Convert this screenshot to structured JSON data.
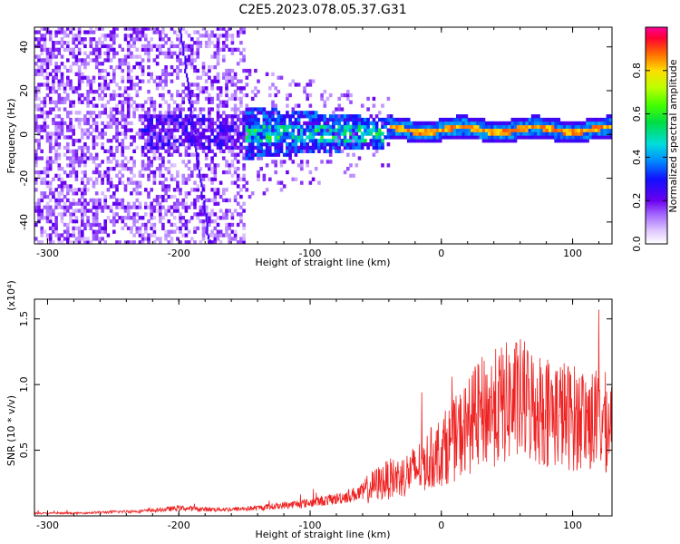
{
  "chart_data": [
    {
      "type": "heatmap",
      "title": "C2E5.2023.078.05.37.G31",
      "xlabel": "Height of straight line (km)",
      "ylabel": "Frequency (Hz)",
      "xlim": [
        -310,
        130
      ],
      "ylim": [
        -50,
        49
      ],
      "x_ticks": [
        "-300",
        "-200",
        "-100",
        "0",
        "100"
      ],
      "y_ticks": [
        "-40",
        "-20",
        "0",
        "20",
        "40"
      ],
      "colorbar": {
        "label": "Normalized spectral amplitude",
        "range": [
          0,
          1
        ],
        "ticks": [
          "0.0",
          "0.2",
          "0.4",
          "0.6",
          "0.8"
        ]
      },
      "features": {
        "ridge_frequency": 0,
        "ridge_start_x": -40,
        "peak_amplitude": 0.9
      }
    },
    {
      "type": "line",
      "xlabel": "Height of straight line (km)",
      "ylabel": "SNR (10 * v/v)",
      "y_multiplier": "(x10⁴)",
      "xlim": [
        -310,
        130
      ],
      "ylim": [
        0,
        1.65
      ],
      "x_ticks": [
        "-300",
        "-200",
        "-100",
        "0",
        "100"
      ],
      "y_ticks": [
        "0.5",
        "1.0",
        "1.5"
      ],
      "color": "#ee2222",
      "series": [
        {
          "x": [
            -310,
            -280,
            -250,
            -220,
            -200,
            -180,
            -160,
            -140,
            -120,
            -100,
            -80,
            -60,
            -50,
            -40,
            -30,
            -20,
            -10,
            0,
            10,
            20,
            30,
            40,
            50,
            60,
            70,
            80,
            90,
            100,
            110,
            120,
            130
          ],
          "y": [
            0.02,
            0.02,
            0.03,
            0.04,
            0.06,
            0.05,
            0.05,
            0.06,
            0.08,
            0.1,
            0.13,
            0.18,
            0.24,
            0.28,
            0.3,
            0.35,
            0.42,
            0.5,
            0.58,
            0.68,
            0.78,
            0.82,
            0.86,
            0.88,
            0.84,
            0.8,
            0.78,
            0.75,
            0.74,
            0.72,
            0.7
          ]
        }
      ]
    }
  ]
}
